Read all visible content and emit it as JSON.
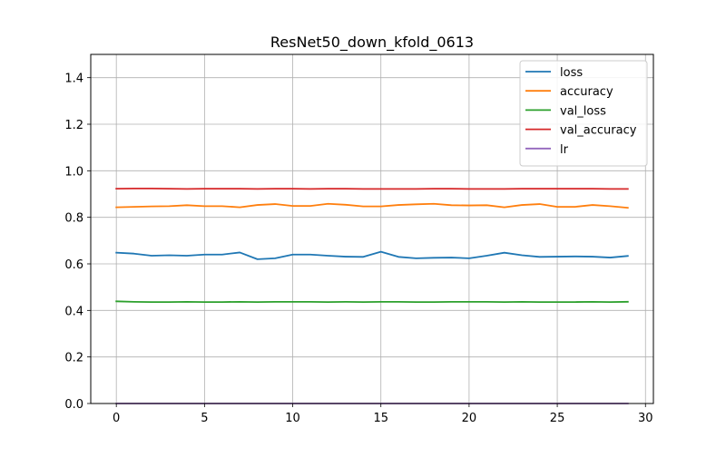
{
  "chart_data": {
    "type": "line",
    "title": "ResNet50_down_kfold_0613",
    "xlabel": "",
    "ylabel": "",
    "xlim": [
      -1.45,
      30.45
    ],
    "ylim": [
      0.0,
      1.5
    ],
    "xticks": [
      0,
      5,
      10,
      15,
      20,
      25,
      30
    ],
    "yticks": [
      0.0,
      0.2,
      0.4,
      0.6,
      0.8,
      1.0,
      1.2,
      1.4
    ],
    "xtick_labels": [
      "0",
      "5",
      "10",
      "15",
      "20",
      "25",
      "30"
    ],
    "ytick_labels": [
      "0.0",
      "0.2",
      "0.4",
      "0.6",
      "0.8",
      "1.0",
      "1.2",
      "1.4"
    ],
    "grid": true,
    "legend_position": "top-right",
    "x": [
      0,
      1,
      2,
      3,
      4,
      5,
      6,
      7,
      8,
      9,
      10,
      11,
      12,
      13,
      14,
      15,
      16,
      17,
      18,
      19,
      20,
      21,
      22,
      23,
      24,
      25,
      26,
      27,
      28,
      29
    ],
    "series": [
      {
        "name": "loss",
        "color": "#1f77b4",
        "values": [
          0.648,
          0.644,
          0.635,
          0.637,
          0.635,
          0.64,
          0.64,
          0.649,
          0.62,
          0.624,
          0.64,
          0.64,
          0.635,
          0.631,
          0.63,
          0.652,
          0.63,
          0.624,
          0.626,
          0.627,
          0.624,
          0.635,
          0.648,
          0.637,
          0.63,
          0.631,
          0.632,
          0.631,
          0.627,
          0.634
        ]
      },
      {
        "name": "accuracy",
        "color": "#ff7f0e",
        "values": [
          0.843,
          0.845,
          0.847,
          0.848,
          0.852,
          0.848,
          0.848,
          0.843,
          0.853,
          0.857,
          0.849,
          0.849,
          0.858,
          0.854,
          0.847,
          0.847,
          0.853,
          0.856,
          0.858,
          0.852,
          0.851,
          0.852,
          0.843,
          0.853,
          0.857,
          0.845,
          0.845,
          0.853,
          0.848,
          0.841
        ]
      },
      {
        "name": "val_loss",
        "color": "#2ca02c",
        "values": [
          0.439,
          0.437,
          0.436,
          0.436,
          0.437,
          0.436,
          0.436,
          0.437,
          0.436,
          0.437,
          0.437,
          0.437,
          0.436,
          0.437,
          0.436,
          0.437,
          0.437,
          0.436,
          0.436,
          0.437,
          0.437,
          0.437,
          0.436,
          0.437,
          0.436,
          0.436,
          0.436,
          0.437,
          0.436,
          0.437
        ]
      },
      {
        "name": "val_accuracy",
        "color": "#d62728",
        "values": [
          0.923,
          0.924,
          0.924,
          0.923,
          0.922,
          0.923,
          0.923,
          0.923,
          0.922,
          0.923,
          0.923,
          0.922,
          0.923,
          0.923,
          0.922,
          0.922,
          0.922,
          0.922,
          0.923,
          0.923,
          0.922,
          0.922,
          0.922,
          0.923,
          0.923,
          0.923,
          0.923,
          0.923,
          0.922,
          0.922
        ]
      },
      {
        "name": "lr",
        "color": "#9467bd",
        "values": [
          0.0001,
          0.0001,
          0.0001,
          0.0001,
          0.0001,
          0.0001,
          0.0001,
          0.0001,
          0.0001,
          0.0001,
          0.0001,
          0.0001,
          0.0001,
          0.0001,
          0.0001,
          0.0001,
          0.0001,
          0.0001,
          0.0001,
          0.0001,
          0.0001,
          0.0001,
          0.0001,
          0.0001,
          0.0001,
          0.0001,
          0.0001,
          0.0001,
          0.0001,
          0.0001
        ]
      }
    ]
  }
}
